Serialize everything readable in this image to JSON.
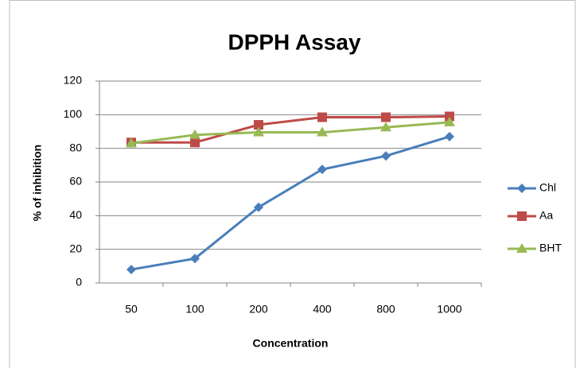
{
  "chart_data": {
    "type": "line",
    "title": "DPPH Assay",
    "x_label": "Concentration",
    "y_label": "% of inhibition",
    "categories": [
      "50",
      "100",
      "200",
      "400",
      "800",
      "1000"
    ],
    "series": [
      {
        "name": "Chl",
        "color": "#4a7ebb",
        "marker": "diamond",
        "values": [
          8,
          14.5,
          45,
          67.5,
          75.5,
          87
        ]
      },
      {
        "name": "Aa",
        "color": "#be4b48",
        "marker": "square",
        "values": [
          83.5,
          83.5,
          94,
          98.5,
          98.5,
          99
        ]
      },
      {
        "name": "BHT",
        "color": "#98b954",
        "marker": "triangle",
        "values": [
          83,
          88,
          89.5,
          89.5,
          92.5,
          95.5
        ]
      }
    ],
    "ylim": [
      0,
      120
    ],
    "yticks": [
      0,
      20,
      40,
      60,
      80,
      100,
      120
    ],
    "grid": true,
    "legend": "right"
  }
}
